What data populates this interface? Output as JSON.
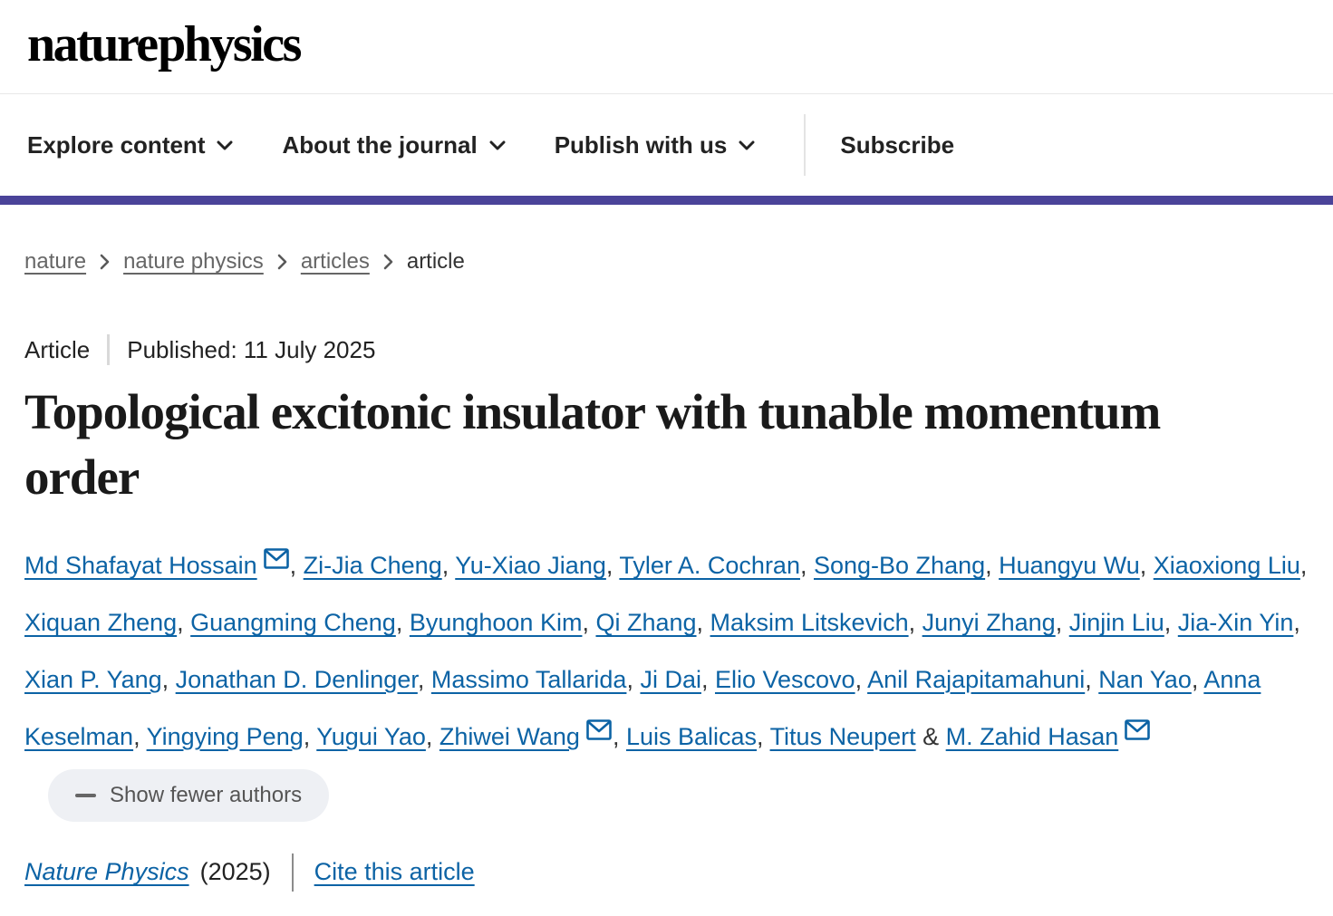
{
  "header": {
    "logo": "nature physics",
    "nav": [
      {
        "label": "Explore content"
      },
      {
        "label": "About the journal"
      },
      {
        "label": "Publish with us"
      }
    ],
    "subscribe_label": "Subscribe"
  },
  "breadcrumb": {
    "items": [
      {
        "label": "nature",
        "current": false
      },
      {
        "label": "nature physics",
        "current": false
      },
      {
        "label": "articles",
        "current": false
      },
      {
        "label": "article",
        "current": true
      }
    ]
  },
  "article": {
    "type_label": "Article",
    "published_label": "Published: 11 July 2025",
    "title": "Topological excitonic insulator with tunable momentum order",
    "authors": [
      {
        "name": "Md Shafayat Hossain",
        "email": true
      },
      {
        "name": "Zi-Jia Cheng",
        "email": false
      },
      {
        "name": "Yu-Xiao Jiang",
        "email": false
      },
      {
        "name": "Tyler A. Cochran",
        "email": false
      },
      {
        "name": "Song-Bo Zhang",
        "email": false
      },
      {
        "name": "Huangyu Wu",
        "email": false
      },
      {
        "name": "Xiaoxiong Liu",
        "email": false
      },
      {
        "name": "Xiquan Zheng",
        "email": false
      },
      {
        "name": "Guangming Cheng",
        "email": false
      },
      {
        "name": "Byunghoon Kim",
        "email": false
      },
      {
        "name": "Qi Zhang",
        "email": false
      },
      {
        "name": "Maksim Litskevich",
        "email": false
      },
      {
        "name": "Junyi Zhang",
        "email": false
      },
      {
        "name": "Jinjin Liu",
        "email": false
      },
      {
        "name": "Jia-Xin Yin",
        "email": false
      },
      {
        "name": "Xian P. Yang",
        "email": false
      },
      {
        "name": "Jonathan D. Denlinger",
        "email": false
      },
      {
        "name": "Massimo Tallarida",
        "email": false
      },
      {
        "name": "Ji Dai",
        "email": false
      },
      {
        "name": "Elio Vescovo",
        "email": false
      },
      {
        "name": "Anil Rajapitamahuni",
        "email": false
      },
      {
        "name": "Nan Yao",
        "email": false
      },
      {
        "name": "Anna Keselman",
        "email": false
      },
      {
        "name": "Yingying Peng",
        "email": false
      },
      {
        "name": "Yugui Yao",
        "email": false
      },
      {
        "name": "Zhiwei Wang",
        "email": true
      },
      {
        "name": "Luis Balicas",
        "email": false
      },
      {
        "name": "Titus Neupert",
        "email": false
      },
      {
        "name": "M. Zahid Hasan",
        "email": true
      }
    ],
    "author_separator": ", ",
    "author_conjunction": " & ",
    "show_fewer_label": "Show fewer authors"
  },
  "citation": {
    "journal": "Nature Physics",
    "year": "(2025)",
    "cite_label": "Cite this article"
  },
  "colors": {
    "link_blue": "#0c63a5",
    "brand_purple": "#4a4399",
    "breadcrumb_gray": "#666666",
    "pill_background": "#eef0f4"
  }
}
